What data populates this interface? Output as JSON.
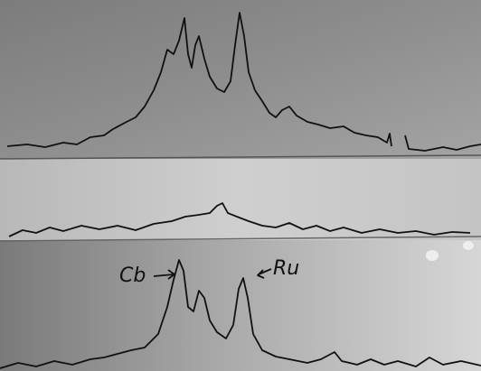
{
  "annotations": {
    "cb": "Cb",
    "ru": "Ru"
  }
}
